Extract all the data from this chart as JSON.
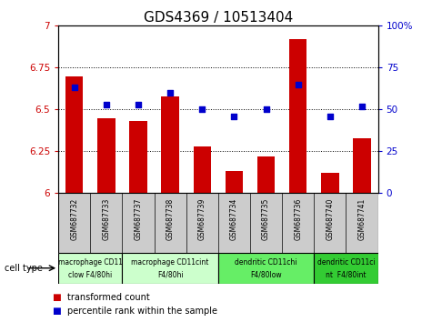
{
  "title": "GDS4369 / 10513404",
  "samples": [
    "GSM687732",
    "GSM687733",
    "GSM687737",
    "GSM687738",
    "GSM687739",
    "GSM687734",
    "GSM687735",
    "GSM687736",
    "GSM687740",
    "GSM687741"
  ],
  "transformed_counts": [
    6.7,
    6.45,
    6.43,
    6.58,
    6.28,
    6.13,
    6.22,
    6.92,
    6.12,
    6.33
  ],
  "percentile_ranks": [
    63,
    53,
    53,
    60,
    50,
    46,
    50,
    65,
    46,
    52
  ],
  "ylim_left": [
    6.0,
    7.0
  ],
  "ylim_right": [
    0,
    100
  ],
  "yticks_left": [
    6.0,
    6.25,
    6.5,
    6.75,
    7.0
  ],
  "ytick_labels_left": [
    "6",
    "6.25",
    "6.5",
    "6.75",
    "7"
  ],
  "yticks_right": [
    0,
    25,
    50,
    75,
    100
  ],
  "ytick_labels_right": [
    "0",
    "25",
    "50",
    "75",
    "100%"
  ],
  "bar_color": "#cc0000",
  "dot_color": "#0000cc",
  "bar_base": 6.0,
  "cell_type_groups": [
    {
      "label": "macrophage CD11\nclow F4/80hi",
      "start": 0,
      "end": 2,
      "color": "#ccffcc"
    },
    {
      "label": "macrophage CD11cint\nF4/80hi",
      "start": 2,
      "end": 5,
      "color": "#ccffcc"
    },
    {
      "label": "dendritic CD11chi\nF4/80low",
      "start": 5,
      "end": 8,
      "color": "#66ee66"
    },
    {
      "label": "dendritic CD11ci\nnt  F4/80int",
      "start": 8,
      "end": 10,
      "color": "#33cc33"
    }
  ],
  "legend_items": [
    {
      "label": "transformed count",
      "color": "#cc0000"
    },
    {
      "label": "percentile rank within the sample",
      "color": "#0000cc"
    }
  ],
  "cell_type_label": "cell type",
  "ylabel_left_color": "#cc0000",
  "ylabel_right_color": "#0000cc",
  "sample_bg_color": "#cccccc",
  "title_fontsize": 11
}
